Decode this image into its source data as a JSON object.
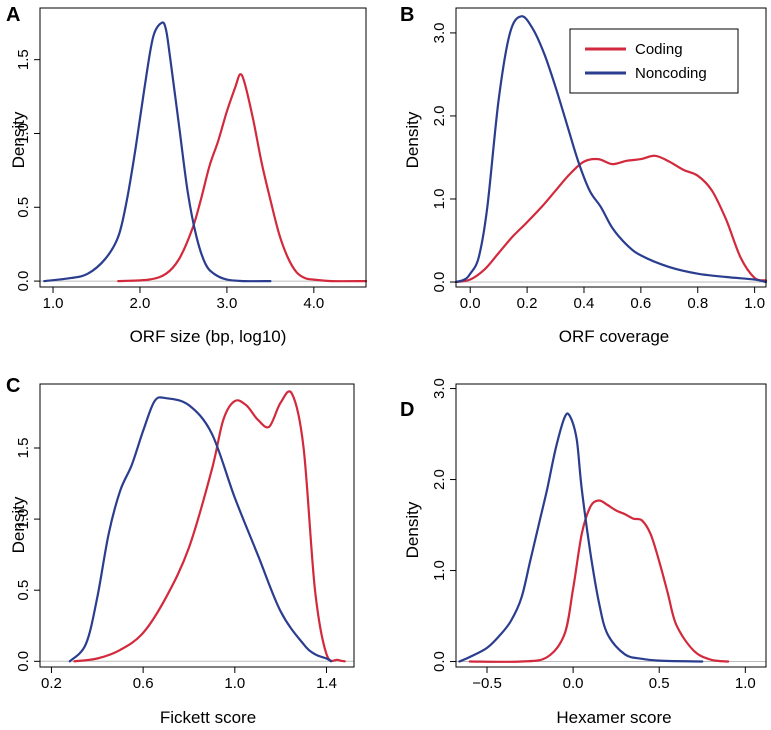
{
  "colors": {
    "coding": "#d22a3c",
    "noncoding": "#2a3d8f",
    "baseline": "#bbbbbb",
    "axis": "#000000"
  },
  "legend": {
    "placement": "top-right",
    "panel": "B",
    "entries": [
      "Coding",
      "Noncoding"
    ]
  },
  "chart_data": [
    {
      "panel": "A",
      "type": "line",
      "xlabel": "ORF size (bp, log10)",
      "ylabel": "Density",
      "xlim": [
        0.85,
        4.6
      ],
      "ylim": [
        -0.04,
        1.85
      ],
      "xticks": [
        1.0,
        2.0,
        3.0,
        4.0
      ],
      "xtick_labels": [
        "1.0",
        "2.0",
        "3.0",
        "4.0"
      ],
      "yticks": [
        0.0,
        0.5,
        1.0,
        1.5
      ],
      "ytick_labels": [
        "0.0",
        "0.5",
        "1.0",
        "1.5"
      ],
      "grid": false,
      "series": [
        {
          "name": "Coding",
          "color": "#d22a3c",
          "x": [
            1.75,
            2.1,
            2.3,
            2.45,
            2.6,
            2.7,
            2.8,
            2.9,
            3.0,
            3.1,
            3.15,
            3.2,
            3.3,
            3.4,
            3.5,
            3.6,
            3.7,
            3.8,
            3.9,
            4.0,
            4.2,
            4.6
          ],
          "y": [
            0.0,
            0.01,
            0.05,
            0.15,
            0.35,
            0.55,
            0.78,
            0.95,
            1.15,
            1.32,
            1.4,
            1.35,
            1.1,
            0.8,
            0.55,
            0.32,
            0.16,
            0.06,
            0.02,
            0.01,
            0.0,
            0.0
          ]
        },
        {
          "name": "Noncoding",
          "color": "#2a3d8f",
          "x": [
            0.9,
            1.2,
            1.4,
            1.6,
            1.75,
            1.85,
            1.95,
            2.05,
            2.15,
            2.25,
            2.3,
            2.35,
            2.45,
            2.55,
            2.65,
            2.75,
            2.85,
            3.0,
            3.2,
            3.5
          ],
          "y": [
            0.0,
            0.02,
            0.05,
            0.15,
            0.3,
            0.55,
            0.9,
            1.3,
            1.65,
            1.75,
            1.7,
            1.5,
            1.05,
            0.6,
            0.3,
            0.12,
            0.05,
            0.01,
            0.0,
            0.0
          ]
        }
      ]
    },
    {
      "panel": "B",
      "type": "line",
      "xlabel": "ORF coverage",
      "ylabel": "Density",
      "xlim": [
        -0.05,
        1.04
      ],
      "ylim": [
        -0.06,
        3.3
      ],
      "xticks": [
        0.0,
        0.2,
        0.4,
        0.6,
        0.8,
        1.0
      ],
      "xtick_labels": [
        "0.0",
        "0.2",
        "0.4",
        "0.6",
        "0.8",
        "1.0"
      ],
      "yticks": [
        0.0,
        1.0,
        2.0,
        3.0
      ],
      "ytick_labels": [
        "0.0",
        "1.0",
        "2.0",
        "3.0"
      ],
      "grid": false,
      "series": [
        {
          "name": "Coding",
          "color": "#d22a3c",
          "x": [
            -0.05,
            0.0,
            0.05,
            0.1,
            0.15,
            0.2,
            0.25,
            0.3,
            0.35,
            0.4,
            0.45,
            0.5,
            0.55,
            0.6,
            0.65,
            0.7,
            0.75,
            0.8,
            0.85,
            0.9,
            0.95,
            1.0,
            1.04
          ],
          "y": [
            0.0,
            0.03,
            0.15,
            0.35,
            0.55,
            0.72,
            0.9,
            1.1,
            1.3,
            1.45,
            1.48,
            1.42,
            1.46,
            1.48,
            1.52,
            1.45,
            1.35,
            1.28,
            1.1,
            0.75,
            0.3,
            0.05,
            0.02
          ]
        },
        {
          "name": "Noncoding",
          "color": "#2a3d8f",
          "x": [
            -0.05,
            -0.02,
            0.0,
            0.03,
            0.06,
            0.1,
            0.14,
            0.18,
            0.22,
            0.26,
            0.3,
            0.34,
            0.38,
            0.42,
            0.46,
            0.5,
            0.55,
            0.6,
            0.7,
            0.8,
            0.9,
            1.0,
            1.04
          ],
          "y": [
            0.0,
            0.03,
            0.1,
            0.3,
            0.9,
            2.2,
            3.0,
            3.2,
            3.05,
            2.75,
            2.35,
            1.9,
            1.45,
            1.1,
            0.9,
            0.65,
            0.45,
            0.32,
            0.18,
            0.1,
            0.06,
            0.03,
            0.0
          ]
        }
      ]
    },
    {
      "panel": "C",
      "type": "line",
      "xlabel": "Fickett score",
      "ylabel": "Density",
      "xlim": [
        0.15,
        1.52
      ],
      "ylim": [
        -0.04,
        1.95
      ],
      "xticks": [
        0.2,
        0.6,
        1.0,
        1.4
      ],
      "xtick_labels": [
        "0.2",
        "0.6",
        "1.0",
        "1.4"
      ],
      "yticks": [
        0.0,
        0.5,
        1.0,
        1.5
      ],
      "ytick_labels": [
        "0.0",
        "0.5",
        "1.0",
        "1.5"
      ],
      "grid": false,
      "series": [
        {
          "name": "Coding",
          "color": "#d22a3c",
          "x": [
            0.3,
            0.4,
            0.5,
            0.6,
            0.7,
            0.8,
            0.9,
            0.95,
            1.0,
            1.05,
            1.1,
            1.15,
            1.2,
            1.25,
            1.3,
            1.35,
            1.4,
            1.45,
            1.48
          ],
          "y": [
            0.0,
            0.02,
            0.08,
            0.2,
            0.45,
            0.8,
            1.35,
            1.7,
            1.83,
            1.8,
            1.7,
            1.65,
            1.82,
            1.88,
            1.5,
            0.5,
            0.05,
            0.01,
            0.0
          ]
        },
        {
          "name": "Noncoding",
          "color": "#2a3d8f",
          "x": [
            0.28,
            0.35,
            0.4,
            0.45,
            0.5,
            0.55,
            0.6,
            0.65,
            0.7,
            0.8,
            0.9,
            1.0,
            1.1,
            1.2,
            1.3,
            1.35,
            1.4,
            1.42
          ],
          "y": [
            0.0,
            0.12,
            0.45,
            0.9,
            1.2,
            1.38,
            1.62,
            1.83,
            1.85,
            1.8,
            1.6,
            1.15,
            0.75,
            0.35,
            0.12,
            0.05,
            0.02,
            0.0
          ]
        }
      ]
    },
    {
      "panel": "D",
      "type": "line",
      "xlabel": "Hexamer score",
      "ylabel": "Density",
      "xlim": [
        -0.68,
        1.12
      ],
      "ylim": [
        -0.06,
        3.05
      ],
      "xticks": [
        -0.5,
        0.0,
        0.5,
        1.0
      ],
      "xtick_labels": [
        "−0.5",
        "0.0",
        "0.5",
        "1.0"
      ],
      "yticks": [
        0.0,
        1.0,
        2.0,
        3.0
      ],
      "ytick_labels": [
        "0.0",
        "1.0",
        "2.0",
        "3.0"
      ],
      "grid": false,
      "series": [
        {
          "name": "Coding",
          "color": "#d22a3c",
          "x": [
            -0.6,
            -0.3,
            -0.15,
            -0.05,
            0.0,
            0.05,
            0.1,
            0.15,
            0.2,
            0.25,
            0.3,
            0.35,
            0.4,
            0.45,
            0.5,
            0.55,
            0.6,
            0.7,
            0.8,
            0.9
          ],
          "y": [
            0.0,
            0.0,
            0.05,
            0.3,
            0.8,
            1.4,
            1.7,
            1.77,
            1.72,
            1.66,
            1.62,
            1.57,
            1.55,
            1.4,
            1.1,
            0.75,
            0.4,
            0.12,
            0.02,
            0.0
          ]
        },
        {
          "name": "Noncoding",
          "color": "#2a3d8f",
          "x": [
            -0.66,
            -0.6,
            -0.5,
            -0.42,
            -0.36,
            -0.3,
            -0.25,
            -0.2,
            -0.15,
            -0.1,
            -0.05,
            -0.02,
            0.02,
            0.05,
            0.1,
            0.15,
            0.2,
            0.3,
            0.4,
            0.5,
            0.75
          ],
          "y": [
            0.0,
            0.05,
            0.15,
            0.3,
            0.45,
            0.7,
            1.1,
            1.5,
            1.9,
            2.35,
            2.68,
            2.7,
            2.45,
            1.9,
            1.2,
            0.65,
            0.3,
            0.08,
            0.03,
            0.01,
            0.0
          ]
        }
      ]
    }
  ]
}
